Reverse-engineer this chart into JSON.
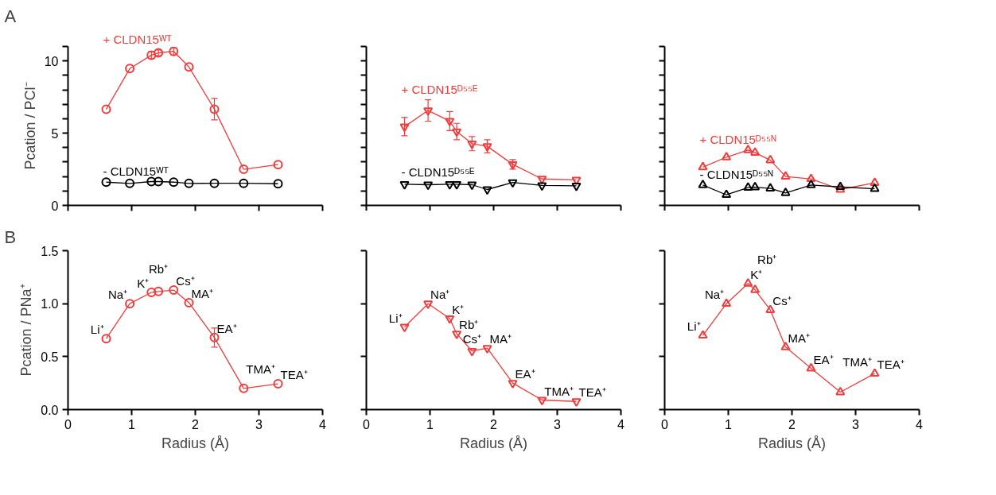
{
  "chart_data": [
    {
      "type": "line",
      "title": "A",
      "ylabel": "Pcation / PCl⁻",
      "x": [
        0.6,
        0.97,
        1.31,
        1.42,
        1.66,
        1.9,
        2.3,
        2.76,
        3.3
      ],
      "xlim": [
        0,
        4
      ],
      "xticks": [
        {
          "value": 0,
          "label": null
        },
        {
          "value": 1,
          "label": null
        },
        {
          "value": 2,
          "label": null
        },
        {
          "value": 3,
          "label": null
        },
        {
          "value": 4,
          "label": null
        }
      ],
      "ylim": [
        0,
        11
      ],
      "yticks": [
        0,
        {
          "value": 1,
          "label": null
        },
        {
          "value": 2,
          "label": null
        },
        {
          "value": 3,
          "label": null
        },
        {
          "value": 4,
          "label": null
        },
        5,
        {
          "value": 6,
          "label": null
        },
        {
          "value": 7,
          "label": null
        },
        {
          "value": 8,
          "label": null
        },
        {
          "value": 9,
          "label": null
        },
        10,
        {
          "value": 11,
          "label": null
        }
      ],
      "tick_labels": "y",
      "marker": "circle",
      "series": [
        {
          "name": "+ CLDN15ᵂᵀ",
          "color": "#f03c3c",
          "values": [
            6.65,
            9.47,
            10.4,
            10.56,
            10.66,
            9.58,
            6.66,
            2.5,
            2.82
          ],
          "errors": [
            null,
            null,
            0.25,
            0.2,
            0.25,
            null,
            0.74,
            null,
            null
          ]
        },
        {
          "name": "- CLDN15ᵂᵀ",
          "color": "#000000",
          "values": [
            1.61,
            1.52,
            1.65,
            1.65,
            1.61,
            1.52,
            1.53,
            1.53,
            1.5
          ]
        }
      ]
    },
    {
      "type": "line",
      "x": [
        0.6,
        0.97,
        1.31,
        1.42,
        1.66,
        1.9,
        2.3,
        2.76,
        3.3
      ],
      "xlim": [
        0,
        4
      ],
      "xticks": [
        {
          "value": 0,
          "label": null
        },
        {
          "value": 1,
          "label": null
        },
        {
          "value": 2,
          "label": null
        },
        {
          "value": 3,
          "label": null
        },
        {
          "value": 4,
          "label": null
        }
      ],
      "ylim": [
        0,
        11
      ],
      "yticks": [
        {
          "value": 0,
          "label": null
        },
        {
          "value": 1,
          "label": null
        },
        {
          "value": 2,
          "label": null
        },
        {
          "value": 3,
          "label": null
        },
        {
          "value": 4,
          "label": null
        },
        {
          "value": 5,
          "label": null
        },
        {
          "value": 6,
          "label": null
        },
        {
          "value": 7,
          "label": null
        },
        {
          "value": 8,
          "label": null
        },
        {
          "value": 9,
          "label": null
        },
        {
          "value": 10,
          "label": null
        },
        {
          "value": 11,
          "label": null
        }
      ],
      "tick_labels": false,
      "marker": "triangle_down",
      "series": [
        {
          "name": "+ CLDN15ᴰ⁵⁵ᴱ",
          "color": "#f03c3c",
          "values": [
            5.45,
            6.57,
            5.84,
            5.11,
            4.27,
            4.09,
            2.84,
            1.83,
            1.77
          ],
          "errors": [
            0.63,
            0.74,
            0.66,
            0.57,
            0.49,
            0.45,
            0.33,
            null,
            null
          ]
        },
        {
          "name": "- CLDN15ᴰ⁵⁵ᴱ",
          "color": "#000000",
          "values": [
            1.46,
            1.43,
            1.46,
            1.46,
            1.43,
            1.1,
            1.59,
            1.38,
            1.35
          ]
        }
      ]
    },
    {
      "type": "line",
      "x": [
        0.6,
        0.97,
        1.31,
        1.42,
        1.66,
        1.9,
        2.3,
        2.76,
        3.3
      ],
      "xlim": [
        0,
        4
      ],
      "xticks": [
        {
          "value": 0,
          "label": null
        },
        {
          "value": 1,
          "label": null
        },
        {
          "value": 2,
          "label": null
        },
        {
          "value": 3,
          "label": null
        },
        {
          "value": 4,
          "label": null
        }
      ],
      "ylim": [
        0,
        11
      ],
      "yticks": [
        {
          "value": 0,
          "label": null
        },
        {
          "value": 1,
          "label": null
        },
        {
          "value": 2,
          "label": null
        },
        {
          "value": 3,
          "label": null
        },
        {
          "value": 4,
          "label": null
        },
        {
          "value": 5,
          "label": null
        },
        {
          "value": 6,
          "label": null
        },
        {
          "value": 7,
          "label": null
        },
        {
          "value": 8,
          "label": null
        },
        {
          "value": 9,
          "label": null
        },
        {
          "value": 10,
          "label": null
        },
        {
          "value": 11,
          "label": null
        }
      ],
      "tick_labels": false,
      "marker": "triangle",
      "series": [
        {
          "name": "+ CLDN15ᴰ⁵⁵ᴺ",
          "color": "#f03c3c",
          "values": [
            2.65,
            3.34,
            3.83,
            3.65,
            3.13,
            2.0,
            1.83,
            1.1,
            1.56
          ]
        },
        {
          "name": "- CLDN15ᴰ⁵⁵ᴺ",
          "color": "#000000",
          "values": [
            1.41,
            0.73,
            1.23,
            1.26,
            1.18,
            0.86,
            1.41,
            1.28,
            1.15
          ]
        }
      ]
    },
    {
      "type": "line",
      "title": "B",
      "xlabel": "Radius (Å)",
      "ylabel": "Pcation / PNa⁺",
      "x": [
        0.6,
        0.97,
        1.31,
        1.42,
        1.66,
        1.9,
        2.3,
        2.76,
        3.3
      ],
      "xlim": [
        0,
        4
      ],
      "xticks": [
        0,
        1,
        2,
        3,
        4
      ],
      "ylim": [
        0,
        1.5
      ],
      "yticks": [
        {
          "value": 0,
          "label": "0.0"
        },
        0.5,
        {
          "value": 1,
          "label": "1.0"
        },
        1.5
      ],
      "marker": "circle",
      "series": [
        {
          "color": "#f03c3c",
          "values": [
            0.67,
            1.0,
            1.106,
            1.115,
            1.128,
            1.009,
            0.68,
            0.2,
            0.243
          ],
          "errors": [
            null,
            null,
            null,
            null,
            null,
            null,
            0.09,
            null,
            null
          ]
        }
      ],
      "annotations": [
        {
          "text": "Li⁺",
          "x": 0.6,
          "y": 0.67
        },
        {
          "text": "Na⁺",
          "x": 0.97,
          "y": 1.0
        },
        {
          "text": "K⁺",
          "x": 1.31,
          "y": 1.106
        },
        {
          "text": "Rb⁺",
          "x": 1.42,
          "y": 1.115
        },
        {
          "text": "Cs⁺",
          "x": 1.66,
          "y": 1.128
        },
        {
          "text": "MA⁺",
          "x": 1.9,
          "y": 1.009
        },
        {
          "text": "EA⁺",
          "x": 2.3,
          "y": 0.68
        },
        {
          "text": "TMA⁺",
          "x": 2.76,
          "y": 0.2
        },
        {
          "text": "TEA⁺",
          "x": 3.3,
          "y": 0.243
        }
      ]
    },
    {
      "type": "line",
      "xlabel": "Radius (Å)",
      "x": [
        0.6,
        0.97,
        1.31,
        1.42,
        1.66,
        1.9,
        2.3,
        2.76,
        3.3
      ],
      "xlim": [
        0,
        4
      ],
      "xticks": [
        0,
        1,
        2,
        3,
        4
      ],
      "ylim": [
        0,
        1.5
      ],
      "yticks": [
        {
          "value": 0,
          "label": null
        },
        {
          "value": 0.5,
          "label": null
        },
        {
          "value": 1,
          "label": null
        },
        {
          "value": 1.5,
          "label": null
        }
      ],
      "tick_labels": "x",
      "marker": "triangle_down",
      "series": [
        {
          "color": "#f03c3c",
          "values": [
            0.78,
            1.0,
            0.86,
            0.715,
            0.553,
            0.58,
            0.25,
            0.09,
            0.077
          ]
        }
      ],
      "annotations": [
        {
          "text": "Li⁺",
          "x": 0.6,
          "y": 0.78
        },
        {
          "text": "Na⁺",
          "x": 0.97,
          "y": 1.0
        },
        {
          "text": "K⁺",
          "x": 1.31,
          "y": 0.86
        },
        {
          "text": "Rb⁺",
          "x": 1.42,
          "y": 0.715
        },
        {
          "text": "Cs⁺",
          "x": 1.66,
          "y": 0.553
        },
        {
          "text": "MA⁺",
          "x": 1.9,
          "y": 0.58
        },
        {
          "text": "EA⁺",
          "x": 2.3,
          "y": 0.25
        },
        {
          "text": "TMA⁺",
          "x": 2.76,
          "y": 0.09
        },
        {
          "text": "TEA⁺",
          "x": 3.3,
          "y": 0.077
        }
      ]
    },
    {
      "type": "line",
      "xlabel": "Radius (Å)",
      "x": [
        0.6,
        0.97,
        1.31,
        1.42,
        1.66,
        1.9,
        2.3,
        2.76,
        3.3
      ],
      "xlim": [
        0,
        4
      ],
      "xticks": [
        0,
        1,
        2,
        3,
        4
      ],
      "ylim": [
        0,
        1.5
      ],
      "yticks": [
        {
          "value": 0,
          "label": null
        },
        {
          "value": 0.5,
          "label": null
        },
        {
          "value": 1,
          "label": null
        },
        {
          "value": 1.5,
          "label": null
        }
      ],
      "tick_labels": "x",
      "marker": "triangle",
      "series": [
        {
          "color": "#f03c3c",
          "values": [
            0.7,
            1.0,
            1.19,
            1.13,
            0.94,
            0.59,
            0.39,
            0.165,
            0.34
          ]
        }
      ],
      "annotations": [
        {
          "text": "Li⁺",
          "x": 0.6,
          "y": 0.7
        },
        {
          "text": "Na⁺",
          "x": 0.97,
          "y": 1.0
        },
        {
          "text": "K⁺",
          "x": 1.31,
          "y": 1.19
        },
        {
          "text": "Rb⁺",
          "x": 1.42,
          "y": 1.13
        },
        {
          "text": "Cs⁺",
          "x": 1.66,
          "y": 0.94
        },
        {
          "text": "MA⁺",
          "x": 1.9,
          "y": 0.59
        },
        {
          "text": "EA⁺",
          "x": 2.3,
          "y": 0.39
        },
        {
          "text": "TMA⁺",
          "x": 2.76,
          "y": 0.165
        },
        {
          "text": "TEA⁺",
          "x": 3.3,
          "y": 0.34
        }
      ]
    }
  ]
}
